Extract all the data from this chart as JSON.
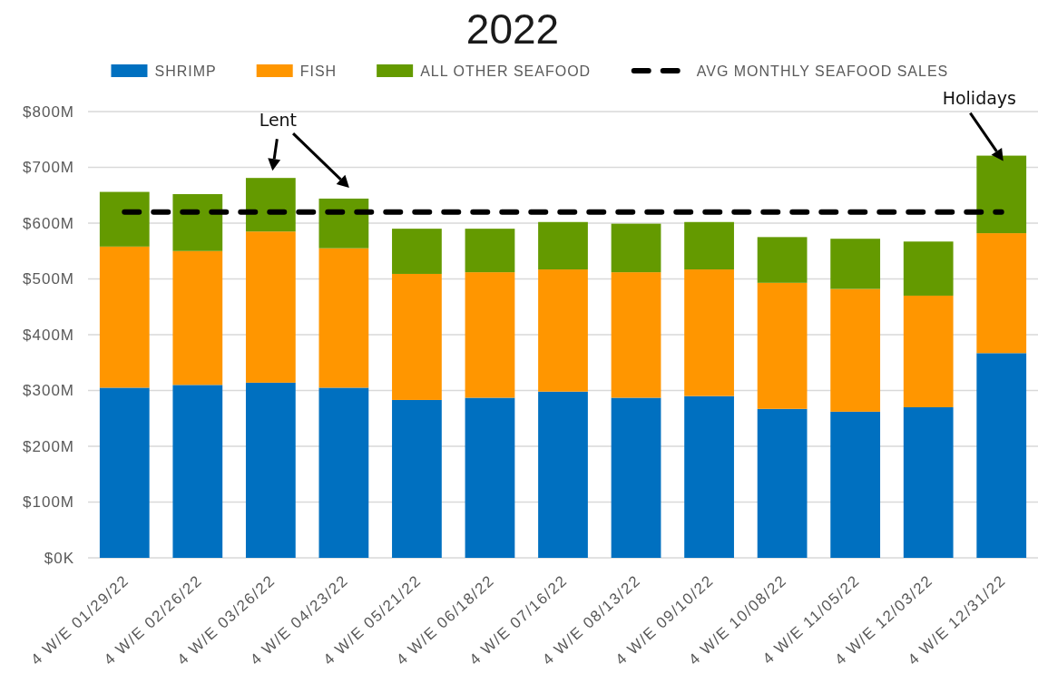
{
  "chart_data": {
    "type": "bar",
    "title": "2022",
    "stacked": true,
    "legend": "top",
    "grid": "y",
    "categories": [
      "4 W/E 01/29/22",
      "4 W/E 02/26/22",
      "4 W/E 03/26/22",
      "4 W/E 04/23/22",
      "4 W/E 05/21/22",
      "4 W/E 06/18/22",
      "4 W/E 07/16/22",
      "4 W/E 08/13/22",
      "4 W/E 09/10/22",
      "4 W/E 10/08/22",
      "4 W/E 11/05/22",
      "4 W/E 12/03/22",
      "4 W/E 12/31/22"
    ],
    "series": [
      {
        "name": "SHRIMP",
        "color": "#0070c0",
        "values": [
          305,
          310,
          314,
          305,
          283,
          287,
          298,
          287,
          290,
          267,
          262,
          270,
          367
        ]
      },
      {
        "name": "FISH",
        "color": "#ff9600",
        "values": [
          253,
          240,
          271,
          250,
          226,
          225,
          219,
          225,
          227,
          226,
          220,
          200,
          215
        ]
      },
      {
        "name": "ALL OTHER SEAFOOD",
        "color": "#649a00",
        "values": [
          98,
          102,
          96,
          89,
          81,
          78,
          85,
          87,
          85,
          82,
          90,
          97,
          139
        ]
      },
      {
        "name": "AVG MONTHLY SEAFOOD SALES",
        "type": "line",
        "line_style": "dashed",
        "color": "#000000",
        "values": [
          620,
          620,
          620,
          620,
          620,
          620,
          620,
          620,
          620,
          620,
          620,
          620,
          620
        ]
      }
    ],
    "ylim": [
      0,
      800
    ],
    "yticks": [
      {
        "value": 0,
        "label": "$0K"
      },
      {
        "value": 100,
        "label": "$100M"
      },
      {
        "value": 200,
        "label": "$200M"
      },
      {
        "value": 300,
        "label": "$300M"
      },
      {
        "value": 400,
        "label": "$400M"
      },
      {
        "value": 500,
        "label": "$500M"
      },
      {
        "value": 600,
        "label": "$600M"
      },
      {
        "value": 700,
        "label": "$700M"
      },
      {
        "value": 800,
        "label": "$800M"
      }
    ],
    "annotations": [
      {
        "text": "Lent",
        "x": "4 W/E 03/26/22",
        "y": 681
      },
      {
        "text": "Holidays",
        "x": "4 W/E 12/31/22",
        "y": 721
      }
    ]
  }
}
